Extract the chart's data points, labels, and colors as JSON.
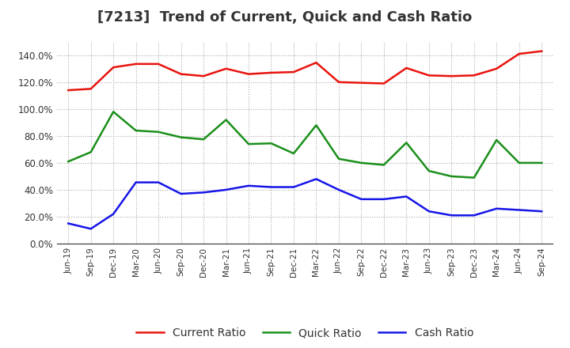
{
  "title": "[7213]  Trend of Current, Quick and Cash Ratio",
  "x_labels": [
    "Jun-19",
    "Sep-19",
    "Dec-19",
    "Mar-20",
    "Jun-20",
    "Sep-20",
    "Dec-20",
    "Mar-21",
    "Jun-21",
    "Sep-21",
    "Dec-21",
    "Mar-22",
    "Jun-22",
    "Sep-22",
    "Dec-22",
    "Mar-23",
    "Jun-23",
    "Sep-23",
    "Dec-23",
    "Mar-24",
    "Jun-24",
    "Sep-24"
  ],
  "current_ratio": [
    114.0,
    115.0,
    131.0,
    133.5,
    133.5,
    126.0,
    124.5,
    130.0,
    126.0,
    127.0,
    127.5,
    134.5,
    120.0,
    119.5,
    119.0,
    130.5,
    125.0,
    124.5,
    125.0,
    130.0,
    141.0,
    143.0
  ],
  "quick_ratio": [
    61.0,
    68.0,
    98.0,
    84.0,
    83.0,
    79.0,
    77.5,
    92.0,
    74.0,
    74.5,
    67.0,
    88.0,
    63.0,
    60.0,
    58.5,
    75.0,
    54.0,
    50.0,
    49.0,
    77.0,
    60.0,
    60.0
  ],
  "cash_ratio": [
    15.0,
    11.0,
    22.0,
    45.5,
    45.5,
    37.0,
    38.0,
    40.0,
    43.0,
    42.0,
    42.0,
    48.0,
    40.0,
    33.0,
    33.0,
    35.0,
    24.0,
    21.0,
    21.0,
    26.0,
    25.0,
    24.0
  ],
  "current_color": "#e8130c",
  "quick_color": "#1a8f1a",
  "cash_color": "#1515e8",
  "ylim": [
    0,
    150
  ],
  "yticks": [
    0,
    20,
    40,
    60,
    80,
    100,
    120,
    140
  ],
  "background_color": "#ffffff",
  "grid_color": "#aaaaaa",
  "title_fontsize": 13,
  "legend_labels": [
    "Current Ratio",
    "Quick Ratio",
    "Cash Ratio"
  ]
}
